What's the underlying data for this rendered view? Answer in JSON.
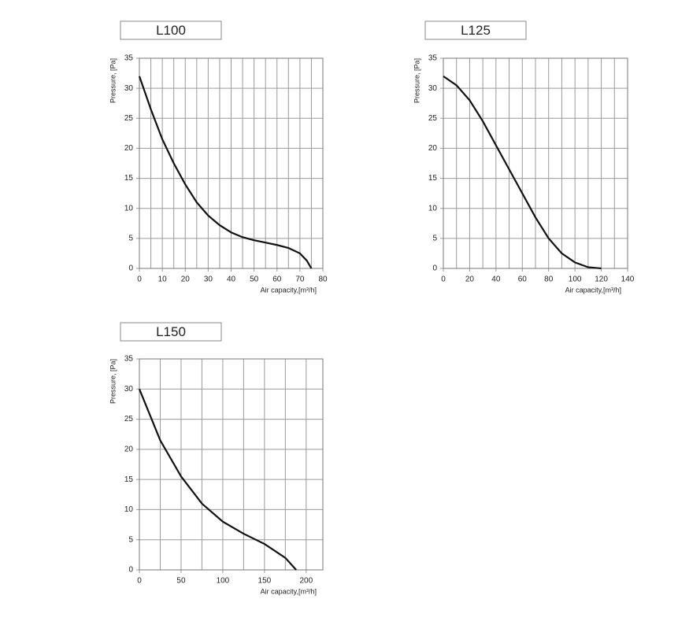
{
  "chart_data": [
    {
      "type": "line",
      "title": "L100",
      "x_label": "Air capacity,[m³/h]",
      "y_label": "Pressure, [Pa]",
      "xlim": [
        0,
        80
      ],
      "xticks": [
        0,
        10,
        20,
        30,
        40,
        50,
        60,
        70,
        80
      ],
      "ylim": [
        0,
        35
      ],
      "yticks": [
        0,
        5,
        10,
        15,
        20,
        25,
        30,
        35
      ],
      "grid": true,
      "series": [
        {
          "color": "#111111",
          "x": [
            0,
            5,
            10,
            15,
            20,
            25,
            30,
            35,
            40,
            45,
            50,
            55,
            60,
            65,
            70,
            73,
            75
          ],
          "values": [
            32,
            26.5,
            21.5,
            17.5,
            14,
            11,
            8.8,
            7.2,
            6,
            5.2,
            4.7,
            4.3,
            3.9,
            3.4,
            2.5,
            1.3,
            0
          ]
        }
      ]
    },
    {
      "type": "line",
      "title": "L125",
      "x_label": "Air capacity,[m³/h]",
      "y_label": "Pressure, [Pa]",
      "xlim": [
        0,
        140
      ],
      "xticks": [
        0,
        20,
        40,
        60,
        80,
        100,
        120,
        140
      ],
      "ylim": [
        0,
        35
      ],
      "yticks": [
        0,
        5,
        10,
        15,
        20,
        25,
        30,
        35
      ],
      "grid": true,
      "series": [
        {
          "color": "#111111",
          "x": [
            0,
            10,
            20,
            30,
            40,
            50,
            60,
            70,
            80,
            90,
            100,
            110,
            120
          ],
          "values": [
            32,
            30.5,
            28,
            24.5,
            20.5,
            16.5,
            12.5,
            8.5,
            5,
            2.5,
            1,
            0.2,
            0
          ]
        }
      ]
    },
    {
      "type": "line",
      "title": "L150",
      "x_label": "Air capacity,[m³/h]",
      "y_label": "Pressure, [Pa]",
      "xlim": [
        0,
        220
      ],
      "xticks": [
        0,
        50,
        100,
        150,
        200
      ],
      "ylim": [
        0,
        35
      ],
      "yticks": [
        0,
        5,
        10,
        15,
        20,
        25,
        30,
        35
      ],
      "grid": true,
      "series": [
        {
          "color": "#111111",
          "x": [
            0,
            25,
            50,
            75,
            100,
            125,
            150,
            175,
            188
          ],
          "values": [
            30,
            21.5,
            15.5,
            11,
            8,
            6,
            4.3,
            2,
            0
          ]
        }
      ]
    }
  ]
}
